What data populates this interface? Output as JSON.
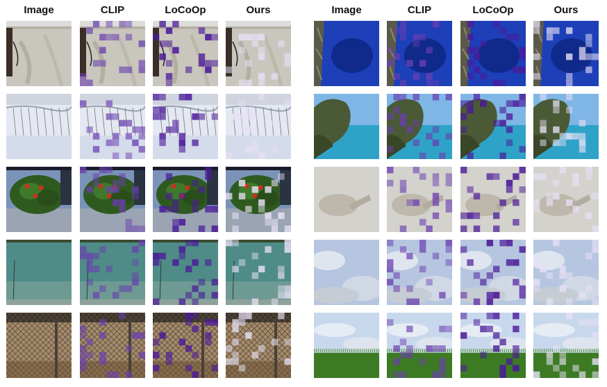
{
  "headers": {
    "left": [
      "Image",
      "CLIP",
      "LoCoOp",
      "Ours"
    ],
    "right": [
      "Image",
      "CLIP",
      "LoCoOp",
      "Ours"
    ]
  },
  "rows": [
    {
      "left_scene": "beach-sand-with-person-legs",
      "right_scene": "deep-blue-water-with-rock"
    },
    {
      "left_scene": "snow-field-with-shrubs",
      "right_scene": "coastal-cliff-and-blue-sea"
    },
    {
      "left_scene": "leafy-plant-with-red-fruit",
      "right_scene": "blurry-grey-object"
    },
    {
      "left_scene": "teal-lake-water",
      "right_scene": "blurry-sky-with-clouds"
    },
    {
      "left_scene": "chainlink-fence-over-dirt",
      "right_scene": "grass-field-under-cloudy-sky"
    }
  ],
  "colors": {
    "clip_patch": "#6a3fb0",
    "locoop_patch": "#4b1a99",
    "ours_patch": "#e6e0f5"
  }
}
